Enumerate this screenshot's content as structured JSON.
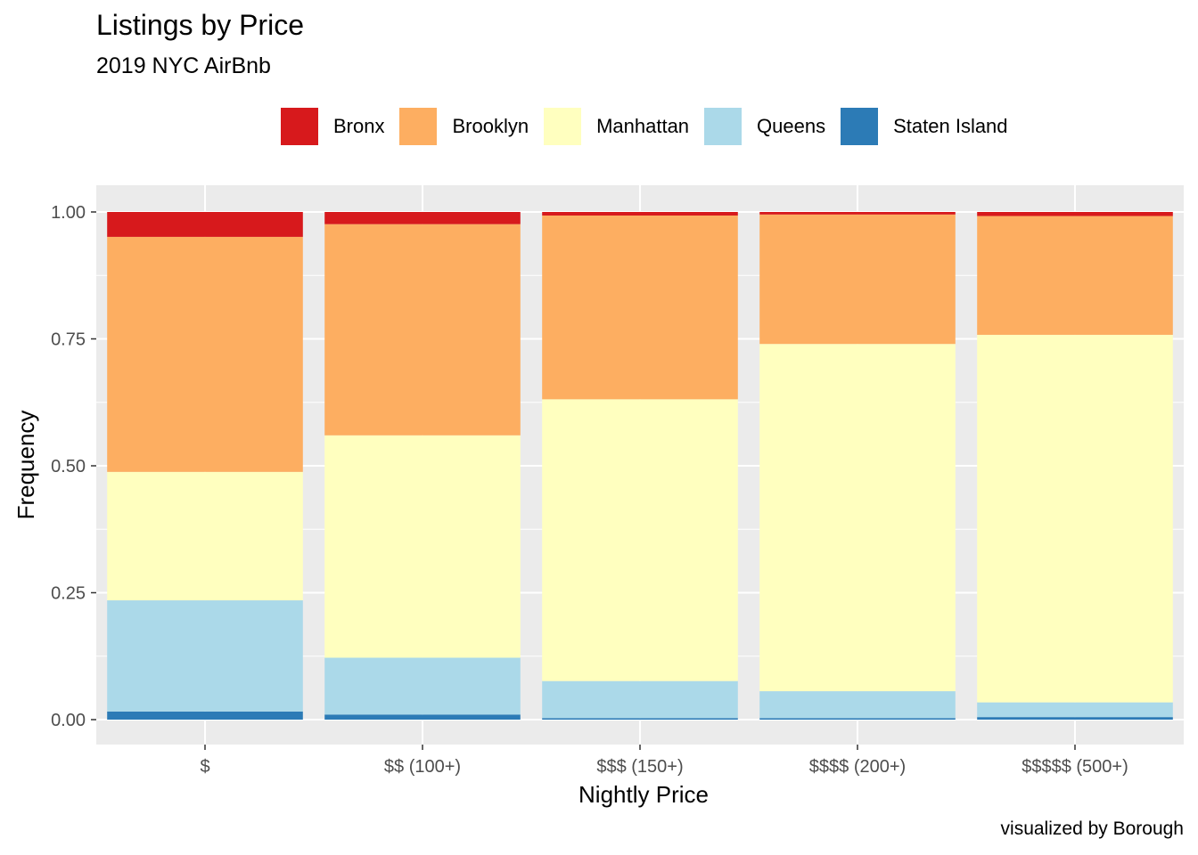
{
  "chart_data": {
    "type": "bar",
    "stacked": true,
    "title": "Listings by Price",
    "subtitle": "2019 NYC AirBnb",
    "caption": "visualized by Borough",
    "xlabel": "Nightly Price",
    "ylabel": "Frequency",
    "ylim": [
      0,
      1.05
    ],
    "yticks": [
      "0.00",
      "0.25",
      "0.50",
      "0.75",
      "1.00"
    ],
    "grid": true,
    "legend_position": "top",
    "categories": [
      "$",
      "$$ (100+)",
      "$$$ (150+)",
      "$$$$ (200+)",
      "$$$$$ (500+)"
    ],
    "series": [
      {
        "name": "Staten Island",
        "color": "#2c7bb6",
        "values": [
          0.016,
          0.01,
          0.003,
          0.003,
          0.005
        ]
      },
      {
        "name": "Queens",
        "color": "#abd9e9",
        "values": [
          0.219,
          0.112,
          0.073,
          0.053,
          0.029
        ]
      },
      {
        "name": "Manhattan",
        "color": "#ffffbf",
        "values": [
          0.253,
          0.438,
          0.555,
          0.684,
          0.724
        ]
      },
      {
        "name": "Brooklyn",
        "color": "#fdae61",
        "values": [
          0.463,
          0.416,
          0.362,
          0.255,
          0.234
        ]
      },
      {
        "name": "Bronx",
        "color": "#d7191c",
        "values": [
          0.049,
          0.024,
          0.007,
          0.005,
          0.008
        ]
      }
    ],
    "legend_order": [
      "Bronx",
      "Brooklyn",
      "Manhattan",
      "Queens",
      "Staten Island"
    ]
  }
}
